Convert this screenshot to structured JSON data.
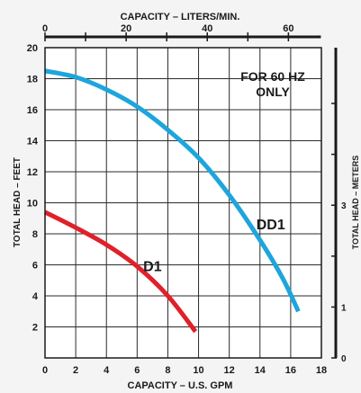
{
  "chart_data": {
    "type": "line",
    "x_axis_bottom": {
      "label": "CAPACITY – U.S. GPM",
      "range": [
        0,
        18
      ],
      "ticks": [
        "0",
        "2",
        "4",
        "6",
        "8",
        "10",
        "12",
        "14",
        "16",
        "18"
      ]
    },
    "x_axis_top": {
      "label": "CAPACITY – LITERS/MIN.",
      "range": [
        0,
        68.13
      ],
      "ticks": [
        "0",
        "20",
        "40",
        "60"
      ]
    },
    "y_axis_left": {
      "label": "TOTAL HEAD – FEET",
      "range": [
        0,
        20
      ],
      "ticks": [
        "2",
        "4",
        "6",
        "8",
        "10",
        "12",
        "14",
        "16",
        "18",
        "20"
      ]
    },
    "y_axis_right": {
      "label": "TOTAL HEAD – METERS",
      "range": [
        0,
        6.096
      ],
      "ticks": [
        "0",
        "1",
        "2",
        "3",
        "4",
        "5"
      ],
      "tick_labels_shown": [
        "0",
        "1",
        "",
        "3",
        "",
        ""
      ]
    },
    "grid": true,
    "annotation": "FOR 60 HZ ONLY",
    "series": [
      {
        "name": "DD1",
        "color": "#1ea5dc",
        "points": [
          [
            0,
            18.5
          ],
          [
            2,
            18.1
          ],
          [
            4,
            17.3
          ],
          [
            6,
            16.2
          ],
          [
            8,
            14.7
          ],
          [
            10,
            12.9
          ],
          [
            12,
            10.5
          ],
          [
            14,
            7.6
          ],
          [
            15.5,
            5.1
          ],
          [
            16.5,
            3.0
          ]
        ]
      },
      {
        "name": "D1",
        "color": "#e0202a",
        "points": [
          [
            0,
            9.4
          ],
          [
            2,
            8.4
          ],
          [
            4,
            7.3
          ],
          [
            6,
            5.9
          ],
          [
            8,
            4.0
          ],
          [
            9.8,
            1.7
          ]
        ]
      }
    ]
  }
}
